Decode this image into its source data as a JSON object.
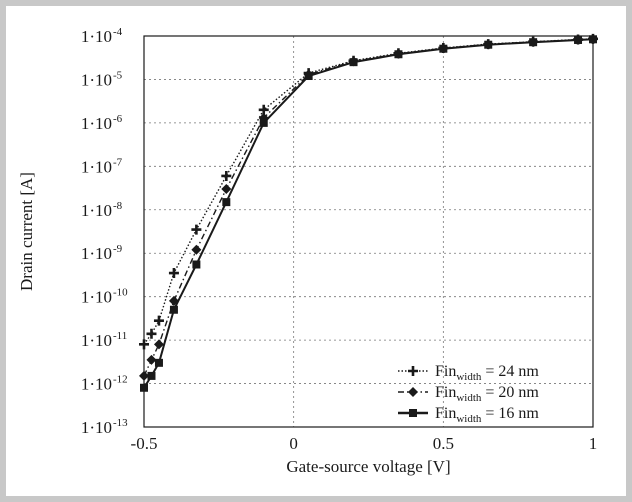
{
  "chart_data": {
    "type": "line",
    "title": "",
    "xlabel": "Gate-source voltage [V]",
    "ylabel": "Drain current [A]",
    "xlim": [
      -0.5,
      1
    ],
    "ylim": [
      1e-13,
      0.0001
    ],
    "yscale": "log",
    "grid": true,
    "legend_position": "bottom-right",
    "x_ticks": [
      {
        "value": -0.5,
        "label": "-0.5"
      },
      {
        "value": 0,
        "label": "0"
      },
      {
        "value": 0.5,
        "label": "0.5"
      },
      {
        "value": 1,
        "label": "1"
      }
    ],
    "y_ticks": [
      {
        "value": 0.0001,
        "mantissa": "1·10",
        "exp": "-4"
      },
      {
        "value": 1e-05,
        "mantissa": "1·10",
        "exp": "-5"
      },
      {
        "value": 1e-06,
        "mantissa": "1·10",
        "exp": "-6"
      },
      {
        "value": 1e-07,
        "mantissa": "1·10",
        "exp": "-7"
      },
      {
        "value": 1e-08,
        "mantissa": "1·10",
        "exp": "-8"
      },
      {
        "value": 1e-09,
        "mantissa": "1·10",
        "exp": "-9"
      },
      {
        "value": 1e-10,
        "mantissa": "1·10",
        "exp": "-10"
      },
      {
        "value": 1e-11,
        "mantissa": "1·10",
        "exp": "-11"
      },
      {
        "value": 1e-12,
        "mantissa": "1·10",
        "exp": "-12"
      },
      {
        "value": 1e-13,
        "mantissa": "1·10",
        "exp": "-13"
      }
    ],
    "series": [
      {
        "name_base": "Fin",
        "name_sub": "width",
        "name_suffix": " = 24 nm",
        "marker": "plus",
        "dash": "dotted",
        "x": [
          -0.5,
          -0.475,
          -0.45,
          -0.4,
          -0.325,
          -0.225,
          -0.1,
          0.05,
          0.2,
          0.35,
          0.5,
          0.65,
          0.8,
          0.95,
          1.0
        ],
        "y": [
          8e-12,
          1.4e-11,
          2.8e-11,
          3.5e-10,
          3.5e-09,
          6e-08,
          2e-06,
          1.4e-05,
          2.7e-05,
          4e-05,
          5.3e-05,
          6.5e-05,
          7.4e-05,
          8.3e-05,
          8.6e-05
        ]
      },
      {
        "name_base": "Fin",
        "name_sub": "width",
        "name_suffix": " = 20 nm",
        "marker": "diamond",
        "dash": "dashdot",
        "x": [
          -0.5,
          -0.475,
          -0.45,
          -0.4,
          -0.325,
          -0.225,
          -0.1,
          0.05,
          0.2,
          0.35,
          0.5,
          0.65,
          0.8,
          0.95,
          1.0
        ],
        "y": [
          1.5e-12,
          3.5e-12,
          8e-12,
          8e-11,
          1.2e-09,
          3e-08,
          1.3e-06,
          1.3e-05,
          2.6e-05,
          3.9e-05,
          5.2e-05,
          6.4e-05,
          7.3e-05,
          8.2e-05,
          8.5e-05
        ]
      },
      {
        "name_base": "Fin",
        "name_sub": "width",
        "name_suffix": " = 16 nm",
        "marker": "square",
        "dash": "solid",
        "x": [
          -0.5,
          -0.475,
          -0.45,
          -0.4,
          -0.325,
          -0.225,
          -0.1,
          0.05,
          0.2,
          0.35,
          0.5,
          0.65,
          0.8,
          0.95,
          1.0
        ],
        "y": [
          8e-13,
          1.5e-12,
          3e-12,
          5e-11,
          5.5e-10,
          1.5e-08,
          1e-06,
          1.2e-05,
          2.5e-05,
          3.8e-05,
          5.1e-05,
          6.3e-05,
          7.2e-05,
          8.1e-05,
          8.4e-05
        ]
      }
    ]
  }
}
